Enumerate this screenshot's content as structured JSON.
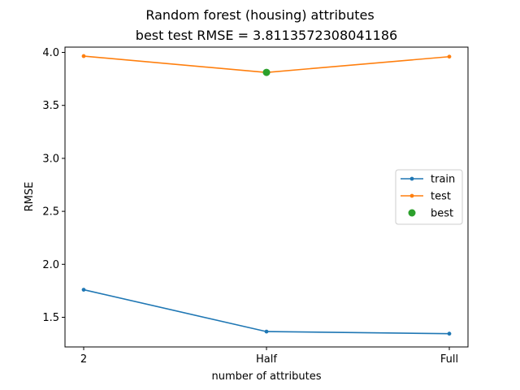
{
  "chart_data": {
    "type": "line",
    "title": "Random forest (housing) attributes",
    "subtitle": "best test RMSE = 3.8113572308041186",
    "xlabel": "number of attributes",
    "ylabel": "RMSE",
    "categories": [
      "2",
      "Half",
      "Full"
    ],
    "ylim": [
      1.22,
      4.05
    ],
    "yticks": [
      1.5,
      2.0,
      2.5,
      3.0,
      3.5,
      4.0
    ],
    "ytick_labels": [
      "1.5",
      "2.0",
      "2.5",
      "3.0",
      "3.5",
      "4.0"
    ],
    "grid": false,
    "legend_position": "center-right",
    "series": [
      {
        "name": "train",
        "color": "#1f77b4",
        "values": [
          1.76,
          1.365,
          1.345
        ]
      },
      {
        "name": "test",
        "color": "#ff7f0e",
        "values": [
          3.965,
          3.811,
          3.96
        ]
      }
    ],
    "best": {
      "name": "best",
      "color": "#2ca02c",
      "category": "Half",
      "value": 3.8113572308041186
    }
  }
}
